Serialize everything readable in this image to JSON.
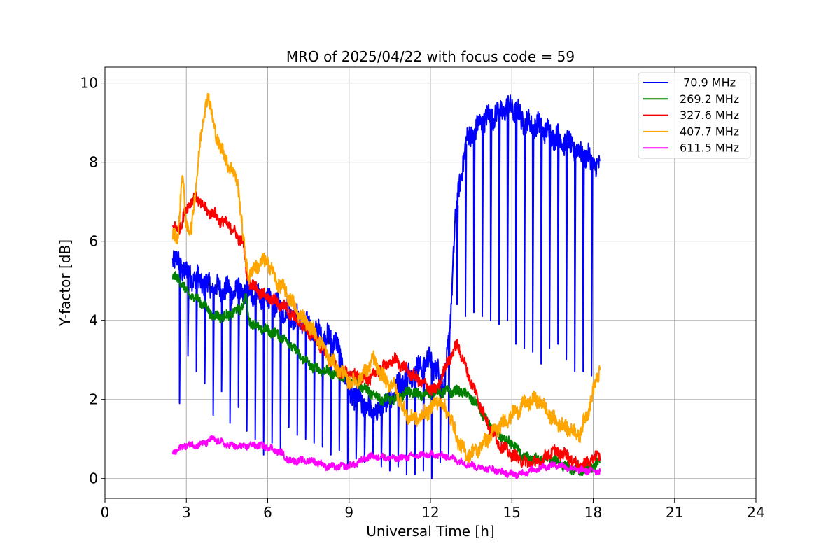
{
  "chart_data": {
    "type": "line",
    "title": "MRO of 2025/04/22 with focus code = 59",
    "xlabel": "Universal Time [h]",
    "ylabel": "Y-factor [dB]",
    "xlim": [
      0,
      24
    ],
    "ylim": [
      -0.5,
      10.4
    ],
    "xticks": [
      0,
      3,
      6,
      9,
      12,
      15,
      18,
      21,
      24
    ],
    "yticks": [
      0,
      2,
      4,
      6,
      8,
      10
    ],
    "grid": true,
    "legend_position": "top-right",
    "series": [
      {
        "name": " 70.9 MHz",
        "color": "#0000ff",
        "trend": [
          [
            2.5,
            5.6
          ],
          [
            3,
            5.2
          ],
          [
            4,
            4.8
          ],
          [
            5,
            4.7
          ],
          [
            5.5,
            4.7
          ],
          [
            6,
            4.5
          ],
          [
            7,
            4.1
          ],
          [
            8,
            3.6
          ],
          [
            8.5,
            3.5
          ],
          [
            9,
            2.2
          ],
          [
            10,
            1.6
          ],
          [
            11,
            2.5
          ],
          [
            12,
            3.0
          ],
          [
            12.5,
            2.4
          ],
          [
            12.7,
            3.5
          ],
          [
            12.9,
            6.5
          ],
          [
            13.3,
            8.5
          ],
          [
            14,
            9.1
          ],
          [
            15,
            9.4
          ],
          [
            15.5,
            9.0
          ],
          [
            16,
            8.9
          ],
          [
            17,
            8.5
          ],
          [
            18,
            8.0
          ],
          [
            18.25,
            7.8
          ]
        ],
        "dips": {
          "times": [
            2.75,
            3.06,
            3.37,
            3.68,
            3.99,
            4.3,
            4.61,
            4.92,
            5.23,
            5.54,
            5.85,
            6.16,
            6.47,
            6.78,
            7.09,
            7.4,
            7.71,
            8.02,
            8.33,
            8.64,
            8.95,
            9.26,
            9.57,
            9.88,
            10.19,
            10.5,
            10.81,
            11.12,
            11.43,
            11.74,
            12.05,
            12.36,
            12.67,
            12.98,
            13.29,
            13.6,
            13.91,
            14.22,
            14.53,
            14.84,
            15.15,
            15.46,
            15.77,
            16.08,
            16.39,
            16.7,
            17.01,
            17.32,
            17.63,
            17.94
          ],
          "values": [
            1.9,
            3.1,
            2.7,
            2.4,
            1.6,
            2.2,
            1.4,
            1.8,
            1.2,
            1.0,
            0.6,
            0.9,
            0.7,
            1.3,
            1.1,
            1.0,
            0.9,
            0.8,
            0.6,
            0.7,
            0.3,
            0.5,
            0.4,
            0.6,
            0.3,
            0.2,
            0.3,
            0.1,
            0.1,
            0.2,
            0.0,
            0.4,
            0.6,
            4.4,
            4.1,
            4.2,
            4.1,
            4.0,
            3.9,
            4.0,
            3.4,
            3.3,
            3.2,
            2.9,
            3.3,
            3.4,
            3.0,
            2.7,
            2.7,
            2.6
          ]
        }
      },
      {
        "name": "269.2 MHz",
        "color": "#008000",
        "trend": [
          [
            2.5,
            5.1
          ],
          [
            2.8,
            5.0
          ],
          [
            3,
            4.7
          ],
          [
            3.5,
            4.5
          ],
          [
            4,
            4.1
          ],
          [
            4.5,
            4.1
          ],
          [
            5,
            4.3
          ],
          [
            5.2,
            4.6
          ],
          [
            5.3,
            4.0
          ],
          [
            5.7,
            3.8
          ],
          [
            6.2,
            3.7
          ],
          [
            6.7,
            3.5
          ],
          [
            7.2,
            3.1
          ],
          [
            7.7,
            2.8
          ],
          [
            8.2,
            2.7
          ],
          [
            8.7,
            2.6
          ],
          [
            9.2,
            2.5
          ],
          [
            9.7,
            2.2
          ],
          [
            10.2,
            2.0
          ],
          [
            10.7,
            2.0
          ],
          [
            11.2,
            2.2
          ],
          [
            11.7,
            2.1
          ],
          [
            12.2,
            2.2
          ],
          [
            12.7,
            2.2
          ],
          [
            13.2,
            2.2
          ],
          [
            13.7,
            1.9
          ],
          [
            14.1,
            1.4
          ],
          [
            14.5,
            1.1
          ],
          [
            15,
            0.9
          ],
          [
            15.5,
            0.5
          ],
          [
            16,
            0.5
          ],
          [
            16.5,
            0.5
          ],
          [
            17,
            0.3
          ],
          [
            17.5,
            0.2
          ],
          [
            18,
            0.3
          ],
          [
            18.25,
            0.4
          ]
        ]
      },
      {
        "name": "327.6 MHz",
        "color": "#ff0000",
        "trend": [
          [
            2.5,
            6.3
          ],
          [
            2.8,
            6.4
          ],
          [
            3.1,
            7.0
          ],
          [
            3.4,
            7.1
          ],
          [
            3.7,
            6.8
          ],
          [
            4,
            6.7
          ],
          [
            4.3,
            6.5
          ],
          [
            4.6,
            6.4
          ],
          [
            4.9,
            6.1
          ],
          [
            5.1,
            6.0
          ],
          [
            5.2,
            5.3
          ],
          [
            5.3,
            5.0
          ],
          [
            5.7,
            4.7
          ],
          [
            6.2,
            4.5
          ],
          [
            6.7,
            4.3
          ],
          [
            7.2,
            3.9
          ],
          [
            7.7,
            3.6
          ],
          [
            8.2,
            3.1
          ],
          [
            8.7,
            2.7
          ],
          [
            9.2,
            2.6
          ],
          [
            9.7,
            2.5
          ],
          [
            10.2,
            2.8
          ],
          [
            10.7,
            3.0
          ],
          [
            11.2,
            2.7
          ],
          [
            11.7,
            2.4
          ],
          [
            12.2,
            2.2
          ],
          [
            12.6,
            2.9
          ],
          [
            13,
            3.4
          ],
          [
            13.3,
            2.8
          ],
          [
            13.7,
            2.1
          ],
          [
            14.1,
            1.4
          ],
          [
            14.5,
            0.9
          ],
          [
            15,
            0.6
          ],
          [
            15.5,
            0.4
          ],
          [
            16,
            0.4
          ],
          [
            16.5,
            0.7
          ],
          [
            17,
            0.6
          ],
          [
            17.5,
            0.3
          ],
          [
            18,
            0.5
          ],
          [
            18.25,
            0.6
          ]
        ]
      },
      {
        "name": "407.7 MHz",
        "color": "#ffa500",
        "trend": [
          [
            2.5,
            6.1
          ],
          [
            2.7,
            6.2
          ],
          [
            2.85,
            7.7
          ],
          [
            3,
            6.4
          ],
          [
            3.2,
            6.3
          ],
          [
            3.5,
            8.5
          ],
          [
            3.8,
            9.8
          ],
          [
            4,
            8.9
          ],
          [
            4.3,
            8.3
          ],
          [
            4.6,
            7.9
          ],
          [
            4.9,
            7.5
          ],
          [
            5.1,
            6.0
          ],
          [
            5.3,
            5.1
          ],
          [
            5.6,
            5.4
          ],
          [
            6,
            5.5
          ],
          [
            6.3,
            5.0
          ],
          [
            6.7,
            4.7
          ],
          [
            7.1,
            4.2
          ],
          [
            7.5,
            3.9
          ],
          [
            7.9,
            3.5
          ],
          [
            8.3,
            3.0
          ],
          [
            8.7,
            2.7
          ],
          [
            9.1,
            2.4
          ],
          [
            9.5,
            2.6
          ],
          [
            9.9,
            3.0
          ],
          [
            10.3,
            2.5
          ],
          [
            10.7,
            2.3
          ],
          [
            11.1,
            1.6
          ],
          [
            11.5,
            1.5
          ],
          [
            11.9,
            1.7
          ],
          [
            12.3,
            2.0
          ],
          [
            12.7,
            1.6
          ],
          [
            13,
            1.0
          ],
          [
            13.3,
            0.6
          ],
          [
            13.7,
            0.7
          ],
          [
            14.1,
            1.0
          ],
          [
            14.5,
            1.3
          ],
          [
            15,
            1.6
          ],
          [
            15.5,
            1.9
          ],
          [
            16,
            2.0
          ],
          [
            16.5,
            1.5
          ],
          [
            17,
            1.3
          ],
          [
            17.5,
            1.1
          ],
          [
            17.8,
            1.7
          ],
          [
            18.25,
            2.8
          ]
        ]
      },
      {
        "name": "611.5 MHz",
        "color": "#ff00ff",
        "trend": [
          [
            2.5,
            0.65
          ],
          [
            3,
            0.85
          ],
          [
            3.5,
            0.85
          ],
          [
            4,
            1.0
          ],
          [
            4.5,
            0.85
          ],
          [
            5,
            0.8
          ],
          [
            5.5,
            0.85
          ],
          [
            6,
            0.8
          ],
          [
            6.5,
            0.65
          ],
          [
            6.8,
            0.45
          ],
          [
            7.2,
            0.45
          ],
          [
            7.7,
            0.45
          ],
          [
            8.2,
            0.3
          ],
          [
            8.7,
            0.3
          ],
          [
            9.2,
            0.35
          ],
          [
            9.7,
            0.55
          ],
          [
            10.2,
            0.55
          ],
          [
            10.7,
            0.5
          ],
          [
            11.2,
            0.55
          ],
          [
            11.7,
            0.6
          ],
          [
            12.2,
            0.6
          ],
          [
            12.7,
            0.55
          ],
          [
            13.2,
            0.4
          ],
          [
            13.7,
            0.3
          ],
          [
            14.2,
            0.25
          ],
          [
            14.7,
            0.15
          ],
          [
            15.2,
            0.1
          ],
          [
            15.7,
            0.2
          ],
          [
            16.2,
            0.3
          ],
          [
            16.7,
            0.35
          ],
          [
            17.2,
            0.25
          ],
          [
            17.7,
            0.2
          ],
          [
            18.25,
            0.2
          ]
        ]
      }
    ]
  }
}
